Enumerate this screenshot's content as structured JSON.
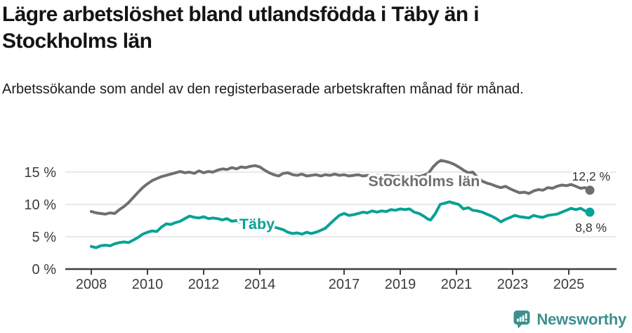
{
  "chart_data": {
    "type": "line",
    "title": "Lägre arbetslöshet bland utlandsfödda i Täby än i Stockholms län",
    "subtitle": "Arbetssökande som andel av den registerbaserade arbetskraften månad för månad.",
    "x_unit": "year, monthly observations",
    "y_unit": "percent of registered labour force",
    "xlim": [
      2007.1,
      2026.7
    ],
    "ylim": [
      0,
      17.7
    ],
    "grid": "horizontal-only",
    "legend": "inline-series-labels",
    "x_ticks": [
      {
        "value": 2008,
        "label": "2008"
      },
      {
        "value": 2010,
        "label": "2010"
      },
      {
        "value": 2012,
        "label": "2012"
      },
      {
        "value": 2014,
        "label": "2014"
      },
      {
        "value": 2017,
        "label": "2017"
      },
      {
        "value": 2019,
        "label": "2019"
      },
      {
        "value": 2021,
        "label": "2021"
      },
      {
        "value": 2023,
        "label": "2023"
      },
      {
        "value": 2025,
        "label": "2025"
      }
    ],
    "y_ticks": [
      {
        "value": 0,
        "label": "0 %"
      },
      {
        "value": 5,
        "label": "5 %"
      },
      {
        "value": 10,
        "label": "10 %"
      },
      {
        "value": 15,
        "label": "15 %"
      }
    ],
    "series": [
      {
        "name": "Stockholms län",
        "color": "#6F6F6F",
        "end_value": 12.2,
        "end_label": "12,2 %",
        "points": [
          [
            2008.0,
            8.9
          ],
          [
            2008.17,
            8.7
          ],
          [
            2008.33,
            8.6
          ],
          [
            2008.5,
            8.5
          ],
          [
            2008.67,
            8.7
          ],
          [
            2008.83,
            8.6
          ],
          [
            2009.0,
            9.2
          ],
          [
            2009.17,
            9.7
          ],
          [
            2009.33,
            10.3
          ],
          [
            2009.5,
            11.1
          ],
          [
            2009.67,
            11.9
          ],
          [
            2009.83,
            12.6
          ],
          [
            2010.0,
            13.2
          ],
          [
            2010.17,
            13.7
          ],
          [
            2010.33,
            14.0
          ],
          [
            2010.5,
            14.3
          ],
          [
            2010.67,
            14.5
          ],
          [
            2010.83,
            14.7
          ],
          [
            2011.0,
            14.9
          ],
          [
            2011.17,
            15.1
          ],
          [
            2011.33,
            14.9
          ],
          [
            2011.5,
            15.0
          ],
          [
            2011.67,
            14.8
          ],
          [
            2011.83,
            15.2
          ],
          [
            2012.0,
            14.9
          ],
          [
            2012.17,
            15.1
          ],
          [
            2012.33,
            15.0
          ],
          [
            2012.5,
            15.3
          ],
          [
            2012.67,
            15.5
          ],
          [
            2012.83,
            15.4
          ],
          [
            2013.0,
            15.7
          ],
          [
            2013.17,
            15.5
          ],
          [
            2013.33,
            15.8
          ],
          [
            2013.5,
            15.7
          ],
          [
            2013.67,
            15.9
          ],
          [
            2013.83,
            16.0
          ],
          [
            2014.0,
            15.8
          ],
          [
            2014.17,
            15.3
          ],
          [
            2014.33,
            14.9
          ],
          [
            2014.5,
            14.6
          ],
          [
            2014.67,
            14.4
          ],
          [
            2014.83,
            14.8
          ],
          [
            2015.0,
            14.9
          ],
          [
            2015.17,
            14.6
          ],
          [
            2015.33,
            14.5
          ],
          [
            2015.5,
            14.7
          ],
          [
            2015.67,
            14.4
          ],
          [
            2015.83,
            14.5
          ],
          [
            2016.0,
            14.6
          ],
          [
            2016.17,
            14.4
          ],
          [
            2016.33,
            14.6
          ],
          [
            2016.5,
            14.5
          ],
          [
            2016.67,
            14.7
          ],
          [
            2016.83,
            14.5
          ],
          [
            2017.0,
            14.6
          ],
          [
            2017.17,
            14.4
          ],
          [
            2017.33,
            14.5
          ],
          [
            2017.5,
            14.6
          ],
          [
            2017.67,
            14.4
          ],
          [
            2017.83,
            14.5
          ],
          [
            2018.0,
            14.4
          ],
          [
            2018.17,
            14.5
          ],
          [
            2018.33,
            14.3
          ],
          [
            2018.5,
            14.5
          ],
          [
            2018.67,
            14.4
          ],
          [
            2018.83,
            14.3
          ],
          [
            2019.0,
            14.4
          ],
          [
            2019.17,
            14.2
          ],
          [
            2019.33,
            14.3
          ],
          [
            2019.5,
            14.4
          ],
          [
            2019.67,
            14.3
          ],
          [
            2019.83,
            14.5
          ],
          [
            2020.0,
            14.8
          ],
          [
            2020.17,
            15.8
          ],
          [
            2020.33,
            16.5
          ],
          [
            2020.45,
            16.8
          ],
          [
            2020.58,
            16.7
          ],
          [
            2020.75,
            16.5
          ],
          [
            2020.92,
            16.2
          ],
          [
            2021.08,
            15.8
          ],
          [
            2021.25,
            15.3
          ],
          [
            2021.42,
            14.9
          ],
          [
            2021.58,
            15.0
          ],
          [
            2021.75,
            14.2
          ],
          [
            2021.92,
            13.6
          ],
          [
            2022.08,
            13.3
          ],
          [
            2022.25,
            13.1
          ],
          [
            2022.42,
            12.8
          ],
          [
            2022.58,
            12.6
          ],
          [
            2022.75,
            12.8
          ],
          [
            2022.92,
            12.4
          ],
          [
            2023.08,
            12.1
          ],
          [
            2023.25,
            11.8
          ],
          [
            2023.42,
            11.9
          ],
          [
            2023.58,
            11.7
          ],
          [
            2023.75,
            12.1
          ],
          [
            2023.92,
            12.3
          ],
          [
            2024.08,
            12.2
          ],
          [
            2024.25,
            12.6
          ],
          [
            2024.42,
            12.5
          ],
          [
            2024.58,
            12.8
          ],
          [
            2024.75,
            13.0
          ],
          [
            2024.92,
            12.9
          ],
          [
            2025.08,
            13.1
          ],
          [
            2025.25,
            12.8
          ],
          [
            2025.42,
            12.5
          ],
          [
            2025.58,
            12.6
          ],
          [
            2025.75,
            12.2
          ]
        ]
      },
      {
        "name": "Täby",
        "color": "#07A296",
        "end_value": 8.8,
        "end_label": "8,8 %",
        "points": [
          [
            2008.0,
            3.5
          ],
          [
            2008.17,
            3.3
          ],
          [
            2008.33,
            3.6
          ],
          [
            2008.5,
            3.7
          ],
          [
            2008.67,
            3.6
          ],
          [
            2008.83,
            3.9
          ],
          [
            2009.0,
            4.1
          ],
          [
            2009.17,
            4.2
          ],
          [
            2009.33,
            4.1
          ],
          [
            2009.5,
            4.5
          ],
          [
            2009.67,
            4.9
          ],
          [
            2009.83,
            5.4
          ],
          [
            2010.0,
            5.7
          ],
          [
            2010.17,
            5.9
          ],
          [
            2010.33,
            5.8
          ],
          [
            2010.5,
            6.5
          ],
          [
            2010.67,
            7.0
          ],
          [
            2010.83,
            6.9
          ],
          [
            2011.0,
            7.2
          ],
          [
            2011.17,
            7.4
          ],
          [
            2011.33,
            7.8
          ],
          [
            2011.5,
            8.2
          ],
          [
            2011.67,
            8.0
          ],
          [
            2011.83,
            7.9
          ],
          [
            2012.0,
            8.1
          ],
          [
            2012.17,
            7.8
          ],
          [
            2012.33,
            7.9
          ],
          [
            2012.5,
            7.8
          ],
          [
            2012.67,
            7.6
          ],
          [
            2012.83,
            7.8
          ],
          [
            2013.0,
            7.4
          ],
          [
            2013.17,
            7.5
          ],
          [
            2013.33,
            7.2
          ],
          [
            2013.5,
            7.3
          ],
          [
            2013.67,
            7.1
          ],
          [
            2013.83,
            7.0
          ],
          [
            2014.0,
            6.9
          ],
          [
            2014.17,
            6.8
          ],
          [
            2014.33,
            6.6
          ],
          [
            2014.5,
            6.5
          ],
          [
            2014.67,
            6.3
          ],
          [
            2014.83,
            6.1
          ],
          [
            2015.0,
            5.7
          ],
          [
            2015.17,
            5.5
          ],
          [
            2015.33,
            5.6
          ],
          [
            2015.5,
            5.4
          ],
          [
            2015.67,
            5.7
          ],
          [
            2015.83,
            5.5
          ],
          [
            2016.0,
            5.7
          ],
          [
            2016.17,
            6.0
          ],
          [
            2016.33,
            6.3
          ],
          [
            2016.5,
            7.0
          ],
          [
            2016.67,
            7.7
          ],
          [
            2016.83,
            8.3
          ],
          [
            2017.0,
            8.6
          ],
          [
            2017.17,
            8.3
          ],
          [
            2017.33,
            8.4
          ],
          [
            2017.5,
            8.6
          ],
          [
            2017.67,
            8.8
          ],
          [
            2017.83,
            8.7
          ],
          [
            2018.0,
            9.0
          ],
          [
            2018.17,
            8.8
          ],
          [
            2018.33,
            9.0
          ],
          [
            2018.5,
            8.9
          ],
          [
            2018.67,
            9.2
          ],
          [
            2018.83,
            9.1
          ],
          [
            2019.0,
            9.3
          ],
          [
            2019.17,
            9.2
          ],
          [
            2019.33,
            9.3
          ],
          [
            2019.5,
            8.8
          ],
          [
            2019.67,
            8.6
          ],
          [
            2019.83,
            8.2
          ],
          [
            2020.0,
            7.7
          ],
          [
            2020.08,
            7.6
          ],
          [
            2020.25,
            8.6
          ],
          [
            2020.42,
            10.0
          ],
          [
            2020.58,
            10.2
          ],
          [
            2020.75,
            10.4
          ],
          [
            2020.92,
            10.2
          ],
          [
            2021.08,
            10.0
          ],
          [
            2021.25,
            9.3
          ],
          [
            2021.42,
            9.5
          ],
          [
            2021.58,
            9.1
          ],
          [
            2021.75,
            9.0
          ],
          [
            2021.92,
            8.8
          ],
          [
            2022.08,
            8.5
          ],
          [
            2022.25,
            8.2
          ],
          [
            2022.42,
            7.8
          ],
          [
            2022.58,
            7.3
          ],
          [
            2022.75,
            7.7
          ],
          [
            2022.92,
            8.0
          ],
          [
            2023.08,
            8.3
          ],
          [
            2023.25,
            8.1
          ],
          [
            2023.42,
            8.0
          ],
          [
            2023.58,
            7.9
          ],
          [
            2023.75,
            8.3
          ],
          [
            2023.92,
            8.1
          ],
          [
            2024.08,
            8.0
          ],
          [
            2024.25,
            8.3
          ],
          [
            2024.42,
            8.4
          ],
          [
            2024.58,
            8.5
          ],
          [
            2024.75,
            8.8
          ],
          [
            2024.92,
            9.1
          ],
          [
            2025.08,
            9.4
          ],
          [
            2025.25,
            9.2
          ],
          [
            2025.42,
            9.4
          ],
          [
            2025.58,
            9.0
          ],
          [
            2025.75,
            8.8
          ]
        ]
      }
    ],
    "colors": {
      "grid": "#D9D9D9",
      "axis": "#3F3F3F",
      "tick_label": "#3C3C3C",
      "end_value_label": "#333333"
    }
  },
  "footer": {
    "brand": "Newsworthy",
    "icon": "newsworthy-bar-chart-speech-bubble-icon",
    "color": "#3E8F8F"
  }
}
